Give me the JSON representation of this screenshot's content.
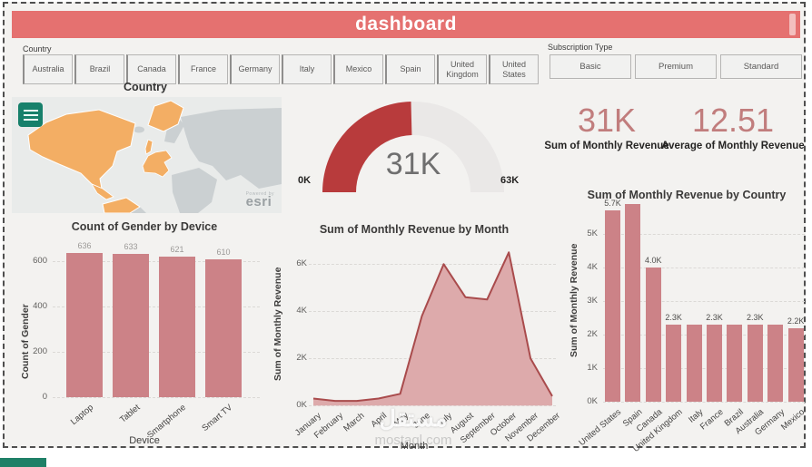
{
  "title_bar": {
    "title": "dashboard"
  },
  "filters": {
    "country": {
      "label": "Country",
      "options": [
        "Australia",
        "Brazil",
        "Canada",
        "France",
        "Germany",
        "Italy",
        "Mexico",
        "Spain",
        "United Kingdom",
        "United States"
      ]
    },
    "subscription": {
      "label": "Subscription Type",
      "options": [
        "Basic",
        "Premium",
        "Standard"
      ]
    }
  },
  "map": {
    "title": "Country",
    "attribution_prefix": "Powered by",
    "attribution": "esri"
  },
  "gauge": {
    "min": 0,
    "max": 63000,
    "value": 31000,
    "min_label": "0K",
    "max_label": "63K",
    "value_label": "31K"
  },
  "kpis": [
    {
      "value": "31K",
      "label": "Sum of Monthly Revenue"
    },
    {
      "value": "12.51",
      "label": "Average of Monthly Revenue"
    }
  ],
  "watermark": {
    "logo": "مستقل",
    "domain": "mostaql.com"
  },
  "colors": {
    "accent": "#e57170",
    "gauge_fill": "#b83b3c",
    "gauge_rest": "#eae8e7",
    "bar": "#cc8287",
    "area_fill": "#ddaaab",
    "area_line": "#a94b4c",
    "kpi_value": "#c17d7d",
    "map_highlight": "#f3ae64",
    "map_land": "#cbd0d2",
    "teal": "#1f8067"
  },
  "chart_data": [
    {
      "id": "gender_by_device",
      "type": "bar",
      "title": "Count of Gender by Device",
      "xlabel": "Device",
      "ylabel": "Count of Gender",
      "categories": [
        "Laptop",
        "Tablet",
        "Smartphone",
        "Smart TV"
      ],
      "values": [
        636,
        633,
        621,
        610
      ],
      "data_labels": [
        "636",
        "633",
        "621",
        "610"
      ],
      "ytick_values": [
        0,
        200,
        400,
        600
      ],
      "ytick_labels": [
        "0",
        "200",
        "400",
        "600"
      ],
      "ylim": [
        0,
        700
      ],
      "grid": true,
      "legend": "none"
    },
    {
      "id": "revenue_by_month",
      "type": "area",
      "title": "Sum of Monthly Revenue by Month",
      "xlabel": "Month",
      "ylabel": "Sum of Monthly Revenue",
      "categories": [
        "January",
        "February",
        "March",
        "April",
        "May",
        "June",
        "July",
        "August",
        "September",
        "October",
        "November",
        "December"
      ],
      "values": [
        300,
        200,
        200,
        300,
        500,
        3800,
        6000,
        4600,
        4500,
        6500,
        2000,
        400
      ],
      "ytick_values": [
        0,
        2000,
        4000,
        6000
      ],
      "ytick_labels": [
        "0K",
        "2K",
        "4K",
        "6K"
      ],
      "ylim": [
        0,
        6550
      ],
      "grid": true,
      "legend": "none"
    },
    {
      "id": "revenue_by_country",
      "type": "bar",
      "title": "Sum of Monthly Revenue by Country",
      "xlabel": "",
      "ylabel": "Sum of Monthly Revenue",
      "categories": [
        "United States",
        "Spain",
        "Canada",
        "United Kingdom",
        "Italy",
        "France",
        "Brazil",
        "Australia",
        "Germany",
        "Mexico"
      ],
      "values": [
        5700,
        5900,
        4000,
        2300,
        2300,
        2300,
        2300,
        2300,
        2300,
        2200
      ],
      "data_labels": [
        "5.7K",
        "",
        "4.0K",
        "2.3K",
        "",
        "2.3K",
        "",
        "2.3K",
        "",
        "2.2K"
      ],
      "ytick_values": [
        0,
        1000,
        2000,
        3000,
        4000,
        5000
      ],
      "ytick_labels": [
        "0K",
        "1K",
        "2K",
        "3K",
        "4K",
        "5K"
      ],
      "ylim": [
        0,
        5820
      ],
      "grid": true,
      "legend": "none"
    }
  ]
}
